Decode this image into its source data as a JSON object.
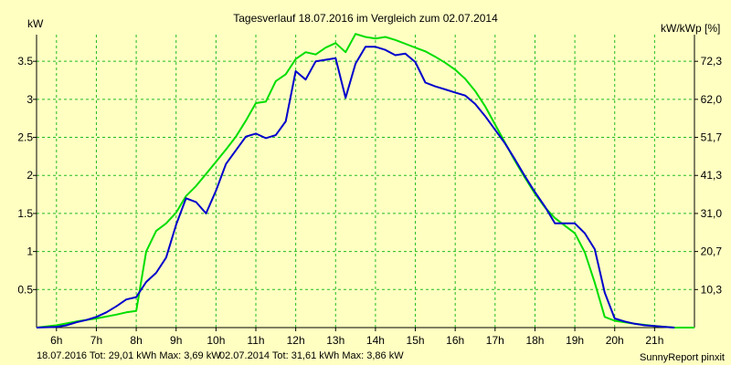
{
  "colors": {
    "background": "#FFFFC2",
    "grid": "#22BB22",
    "axis": "#000000",
    "series_2016": "#0000CC",
    "series_2014": "#00DD00",
    "footer_2016_text": "#0000CC",
    "footer_2014_text": "#00AA00"
  },
  "chart_data": {
    "type": "line",
    "title": "Tagesverlauf 18.07.2016 im Vergleich zum 02.07.2014",
    "ylabel_left": "kW",
    "ylabel_right": "kW/kWp [%]",
    "xlim": [
      5.5,
      22
    ],
    "ylim": [
      0,
      3.85
    ],
    "grid": true,
    "x_ticks": [
      6,
      7,
      8,
      9,
      10,
      11,
      12,
      13,
      14,
      15,
      16,
      17,
      18,
      19,
      20,
      21
    ],
    "x_tick_labels": [
      "6h",
      "7h",
      "8h",
      "9h",
      "10h",
      "11h",
      "12h",
      "13h",
      "14h",
      "15h",
      "16h",
      "17h",
      "18h",
      "19h",
      "20h",
      "21h"
    ],
    "y_ticks_left": [
      0.5,
      1,
      1.5,
      2,
      2.5,
      3,
      3.5
    ],
    "y_tick_labels_left": [
      "0.5",
      "1",
      "1.5",
      "2",
      "2.5",
      "3",
      "3.5"
    ],
    "y_tick_labels_right": [
      "10,3",
      "20,7",
      "31,0",
      "41,3",
      "51,7",
      "62,0",
      "72,3"
    ],
    "series": [
      {
        "key": "s2016",
        "x": [
          5.5,
          6.0,
          6.25,
          6.5,
          6.75,
          7.0,
          7.25,
          7.5,
          7.75,
          8.0,
          8.25,
          8.5,
          8.75,
          9.0,
          9.25,
          9.5,
          9.75,
          10.0,
          10.25,
          10.5,
          10.75,
          11.0,
          11.25,
          11.5,
          11.75,
          12.0,
          12.25,
          12.5,
          12.75,
          13.0,
          13.25,
          13.5,
          13.75,
          14.0,
          14.25,
          14.5,
          14.75,
          15.0,
          15.25,
          15.5,
          15.75,
          16.0,
          16.25,
          16.5,
          16.75,
          17.0,
          17.25,
          17.5,
          17.75,
          18.0,
          18.25,
          18.5,
          18.75,
          19.0,
          19.25,
          19.5,
          19.75,
          20.0,
          20.25,
          20.5,
          20.75,
          21.0,
          21.25,
          21.5
        ],
        "y": [
          0.0,
          0.01,
          0.03,
          0.07,
          0.1,
          0.14,
          0.2,
          0.28,
          0.37,
          0.4,
          0.6,
          0.72,
          0.92,
          1.35,
          1.7,
          1.65,
          1.5,
          1.8,
          2.15,
          2.33,
          2.51,
          2.55,
          2.49,
          2.53,
          2.71,
          3.37,
          3.26,
          3.5,
          3.52,
          3.54,
          3.02,
          3.47,
          3.69,
          3.69,
          3.65,
          3.58,
          3.6,
          3.49,
          3.22,
          3.17,
          3.13,
          3.09,
          3.05,
          2.94,
          2.78,
          2.6,
          2.42,
          2.21,
          1.99,
          1.78,
          1.59,
          1.37,
          1.37,
          1.37,
          1.24,
          1.03,
          0.46,
          0.12,
          0.08,
          0.05,
          0.03,
          0.02,
          0.01,
          0.0
        ]
      },
      {
        "key": "s2014",
        "x": [
          5.5,
          6.0,
          6.5,
          7.0,
          7.5,
          7.75,
          8.0,
          8.25,
          8.5,
          8.75,
          9.0,
          9.25,
          9.5,
          9.75,
          10.0,
          10.25,
          10.5,
          10.75,
          11.0,
          11.25,
          11.5,
          11.75,
          12.0,
          12.25,
          12.5,
          12.75,
          13.0,
          13.25,
          13.5,
          13.75,
          14.0,
          14.25,
          14.5,
          14.75,
          15.0,
          15.25,
          15.5,
          15.75,
          16.0,
          16.25,
          16.5,
          16.75,
          17.0,
          17.25,
          17.5,
          17.75,
          18.0,
          18.25,
          18.5,
          18.75,
          19.0,
          19.25,
          19.5,
          19.75,
          20.0,
          20.5,
          21.0,
          21.5,
          22.0
        ],
        "y": [
          0.0,
          0.03,
          0.08,
          0.12,
          0.17,
          0.2,
          0.22,
          1.0,
          1.27,
          1.37,
          1.51,
          1.73,
          1.86,
          2.02,
          2.18,
          2.34,
          2.51,
          2.72,
          2.95,
          2.97,
          3.24,
          3.33,
          3.53,
          3.62,
          3.59,
          3.68,
          3.74,
          3.62,
          3.86,
          3.82,
          3.8,
          3.82,
          3.78,
          3.73,
          3.68,
          3.63,
          3.56,
          3.48,
          3.39,
          3.27,
          3.11,
          2.91,
          2.67,
          2.43,
          2.19,
          1.97,
          1.76,
          1.58,
          1.44,
          1.34,
          1.24,
          0.99,
          0.59,
          0.14,
          0.09,
          0.05,
          0.02,
          0.0,
          0.0
        ]
      }
    ]
  },
  "footer": {
    "s2016_text": "18.07.2016 Tot: 29,01 kWh Max: 3,69 kW",
    "s2014_text": "02.07.2014 Tot: 31,61 kWh Max: 3,86 kW",
    "brand": "SunnyReport pinxit"
  }
}
